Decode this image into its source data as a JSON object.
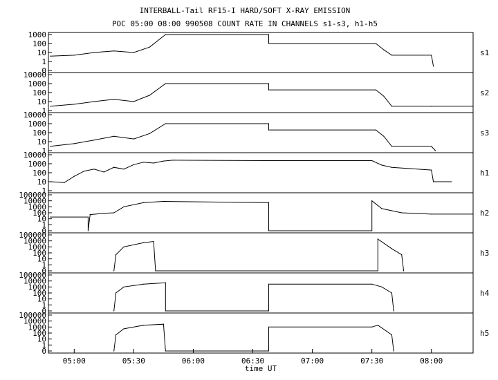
{
  "chart_data": {
    "type": "line",
    "title": "INTERBALL-Tail RF15-I HARD/SOFT X-RAY EMISSION",
    "subtitle": "POC 05:00 08:00 990508  COUNT RATE IN CHANNELS s1-s3, h1-h5",
    "xlabel": "time UT",
    "x_ticks": [
      "05:00",
      "05:30",
      "06:00",
      "06:30",
      "07:00",
      "07:30",
      "08:00"
    ],
    "xlim": [
      "04:47",
      "08:21"
    ],
    "y_scale": "log",
    "grid": false,
    "panels": [
      {
        "name": "s1",
        "y_ticks": [
          "1000",
          "100",
          "10",
          "1",
          "0"
        ],
        "series": [
          {
            "t": "04:48",
            "v": 4
          },
          {
            "t": "05:00",
            "v": 5
          },
          {
            "t": "05:10",
            "v": 10
          },
          {
            "t": "05:20",
            "v": 15
          },
          {
            "t": "05:30",
            "v": 10
          },
          {
            "t": "05:38",
            "v": 40
          },
          {
            "t": "05:46",
            "v": 1000
          },
          {
            "t": "06:38",
            "v": 1000
          },
          {
            "t": "06:38",
            "v": 100
          },
          {
            "t": "07:32",
            "v": 100
          },
          {
            "t": "07:36",
            "v": 20
          },
          {
            "t": "07:40",
            "v": 5
          },
          {
            "t": "08:00",
            "v": 5
          },
          {
            "t": "08:01",
            "v": 0.3
          }
        ]
      },
      {
        "name": "s2",
        "y_ticks": [
          "10000",
          "1000",
          "100",
          "10",
          "1"
        ],
        "series": [
          {
            "t": "04:48",
            "v": 3
          },
          {
            "t": "05:00",
            "v": 5
          },
          {
            "t": "05:10",
            "v": 10
          },
          {
            "t": "05:20",
            "v": 18
          },
          {
            "t": "05:30",
            "v": 10
          },
          {
            "t": "05:38",
            "v": 50
          },
          {
            "t": "05:46",
            "v": 1000
          },
          {
            "t": "06:38",
            "v": 1000
          },
          {
            "t": "06:38",
            "v": 200
          },
          {
            "t": "07:32",
            "v": 200
          },
          {
            "t": "07:36",
            "v": 40
          },
          {
            "t": "07:40",
            "v": 3
          },
          {
            "t": "08:00",
            "v": 3
          },
          {
            "t": "08:21",
            "v": 3
          }
        ]
      },
      {
        "name": "s3",
        "y_ticks": [
          "10000",
          "1000",
          "100",
          "10",
          "1"
        ],
        "series": [
          {
            "t": "04:48",
            "v": 3
          },
          {
            "t": "05:00",
            "v": 6
          },
          {
            "t": "05:10",
            "v": 15
          },
          {
            "t": "05:20",
            "v": 40
          },
          {
            "t": "05:30",
            "v": 20
          },
          {
            "t": "05:38",
            "v": 80
          },
          {
            "t": "05:46",
            "v": 1000
          },
          {
            "t": "06:38",
            "v": 1000
          },
          {
            "t": "06:38",
            "v": 200
          },
          {
            "t": "07:32",
            "v": 200
          },
          {
            "t": "07:36",
            "v": 40
          },
          {
            "t": "07:40",
            "v": 3
          },
          {
            "t": "08:00",
            "v": 3
          },
          {
            "t": "08:02",
            "v": 0.2
          }
        ]
      },
      {
        "name": "h1",
        "y_ticks": [
          "10000",
          "1000",
          "100",
          "10",
          "1"
        ],
        "series": [
          {
            "t": "04:48",
            "v": 10
          },
          {
            "t": "04:55",
            "v": 8
          },
          {
            "t": "05:00",
            "v": 40
          },
          {
            "t": "05:05",
            "v": 150
          },
          {
            "t": "05:10",
            "v": 250
          },
          {
            "t": "05:15",
            "v": 120
          },
          {
            "t": "05:20",
            "v": 400
          },
          {
            "t": "05:25",
            "v": 250
          },
          {
            "t": "05:30",
            "v": 800
          },
          {
            "t": "05:35",
            "v": 1500
          },
          {
            "t": "05:40",
            "v": 1200
          },
          {
            "t": "05:45",
            "v": 2000
          },
          {
            "t": "05:50",
            "v": 2500
          },
          {
            "t": "06:38",
            "v": 2200
          },
          {
            "t": "07:30",
            "v": 2200
          },
          {
            "t": "07:35",
            "v": 700
          },
          {
            "t": "07:40",
            "v": 400
          },
          {
            "t": "08:00",
            "v": 200
          },
          {
            "t": "08:01",
            "v": 10
          },
          {
            "t": "08:10",
            "v": 10
          }
        ]
      },
      {
        "name": "h2",
        "y_ticks": [
          "100000",
          "10000",
          "1000",
          "100",
          "10",
          "1",
          "0"
        ],
        "series": [
          {
            "t": "04:48",
            "v": 20
          },
          {
            "t": "05:07",
            "v": 20
          },
          {
            "t": "05:07",
            "v": 0.1
          },
          {
            "t": "05:08",
            "v": 50
          },
          {
            "t": "05:15",
            "v": 80
          },
          {
            "t": "05:20",
            "v": 100
          },
          {
            "t": "05:25",
            "v": 1000
          },
          {
            "t": "05:35",
            "v": 5000
          },
          {
            "t": "05:45",
            "v": 8000
          },
          {
            "t": "06:38",
            "v": 5000
          },
          {
            "t": "06:38",
            "v": 0.05
          },
          {
            "t": "07:30",
            "v": 0.05
          },
          {
            "t": "07:30",
            "v": 10000
          },
          {
            "t": "07:35",
            "v": 500
          },
          {
            "t": "07:45",
            "v": 100
          },
          {
            "t": "08:00",
            "v": 60
          },
          {
            "t": "08:21",
            "v": 60
          }
        ]
      },
      {
        "name": "h3",
        "y_ticks": [
          "100000",
          "10000",
          "1000",
          "100",
          "10",
          "1",
          "0"
        ],
        "series": [
          {
            "t": "05:20",
            "v": 0.05
          },
          {
            "t": "05:21",
            "v": 50
          },
          {
            "t": "05:25",
            "v": 1000
          },
          {
            "t": "05:35",
            "v": 5000
          },
          {
            "t": "05:40",
            "v": 8000
          },
          {
            "t": "05:41",
            "v": 0.05
          },
          {
            "t": "07:33",
            "v": 0.05
          },
          {
            "t": "07:33",
            "v": 20000
          },
          {
            "t": "07:40",
            "v": 500
          },
          {
            "t": "07:45",
            "v": 50
          },
          {
            "t": "07:46",
            "v": 0.05
          }
        ]
      },
      {
        "name": "h4",
        "y_ticks": [
          "100000",
          "10000",
          "1000",
          "100",
          "10",
          "1",
          "0"
        ],
        "series": [
          {
            "t": "05:20",
            "v": 0.05
          },
          {
            "t": "05:21",
            "v": 100
          },
          {
            "t": "05:25",
            "v": 1000
          },
          {
            "t": "05:35",
            "v": 3000
          },
          {
            "t": "05:46",
            "v": 5000
          },
          {
            "t": "05:46",
            "v": 0.05
          },
          {
            "t": "06:38",
            "v": 0.05
          },
          {
            "t": "06:38",
            "v": 3000
          },
          {
            "t": "07:30",
            "v": 3000
          },
          {
            "t": "07:35",
            "v": 1000
          },
          {
            "t": "07:40",
            "v": 100
          },
          {
            "t": "07:41",
            "v": 0.05
          }
        ]
      },
      {
        "name": "h5",
        "y_ticks": [
          "100000",
          "10000",
          "1000",
          "100",
          "10",
          "1",
          "0"
        ],
        "series": [
          {
            "t": "05:20",
            "v": 0.05
          },
          {
            "t": "05:21",
            "v": 50
          },
          {
            "t": "05:25",
            "v": 500
          },
          {
            "t": "05:35",
            "v": 2000
          },
          {
            "t": "05:45",
            "v": 3000
          },
          {
            "t": "05:46",
            "v": 0.05
          },
          {
            "t": "06:38",
            "v": 0.05
          },
          {
            "t": "06:38",
            "v": 1000
          },
          {
            "t": "07:30",
            "v": 1000
          },
          {
            "t": "07:33",
            "v": 2000
          },
          {
            "t": "07:40",
            "v": 50
          },
          {
            "t": "07:41",
            "v": 0.05
          }
        ]
      }
    ]
  }
}
